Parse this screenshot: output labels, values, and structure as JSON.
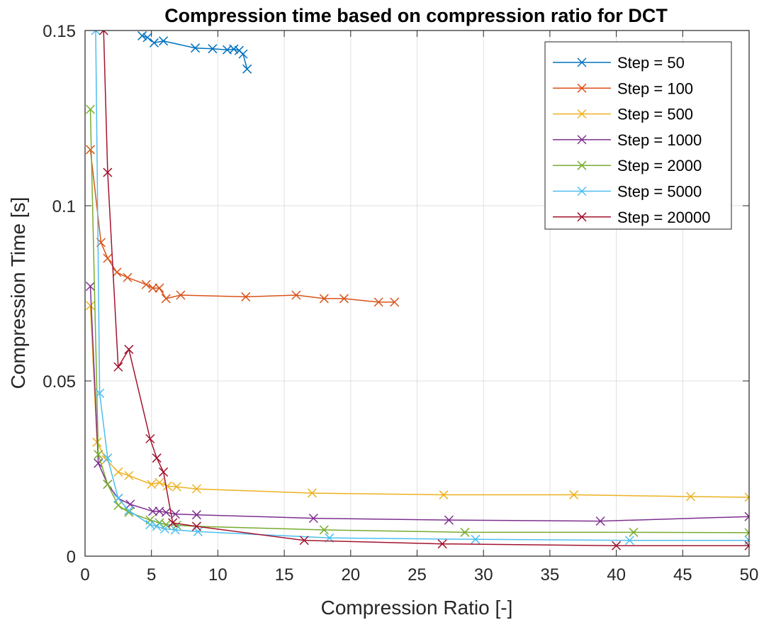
{
  "chart_data": {
    "type": "line",
    "title": "Compression time based on compression ratio for DCT",
    "xlabel": "Compression Ratio [-]",
    "ylabel": "Compression Time [s]",
    "xlim": [
      0,
      50
    ],
    "ylim": [
      0,
      0.15
    ],
    "x_ticks": [
      0,
      5,
      10,
      15,
      20,
      25,
      30,
      35,
      40,
      45,
      50
    ],
    "x_tick_labels": [
      "0",
      "5",
      "10",
      "15",
      "20",
      "25",
      "30",
      "35",
      "40",
      "45",
      "50"
    ],
    "y_ticks": [
      0,
      0.05,
      0.1,
      0.15
    ],
    "y_tick_labels": [
      "0",
      "0.05",
      "0.1",
      "0.15"
    ],
    "grid": true,
    "legend_position": "top-right",
    "marker": "x",
    "series": [
      {
        "name": "Step = 50",
        "color": "#0072BD",
        "x": [
          4.3,
          4.7,
          5.2,
          5.9,
          8.3,
          9.6,
          10.7,
          11.2,
          11.6,
          11.9,
          12.2
        ],
        "y": [
          0.1485,
          0.148,
          0.1465,
          0.147,
          0.145,
          0.1448,
          0.1445,
          0.1447,
          0.1443,
          0.1433,
          0.139
        ]
      },
      {
        "name": "Step = 100",
        "color": "#D95319",
        "x": [
          0.4,
          1.2,
          1.7,
          2.4,
          3.2,
          4.6,
          5.1,
          5.6,
          6.1,
          7.2,
          12.1,
          15.9,
          18.0,
          19.5,
          22.1,
          23.3
        ],
        "y": [
          0.116,
          0.0895,
          0.085,
          0.081,
          0.0795,
          0.0775,
          0.0765,
          0.0765,
          0.0735,
          0.0745,
          0.074,
          0.0745,
          0.0735,
          0.0735,
          0.0725,
          0.0725
        ]
      },
      {
        "name": "Step = 500",
        "color": "#EDB120",
        "x": [
          0.4,
          0.9,
          1.6,
          2.5,
          3.3,
          5.0,
          5.6,
          6.2,
          6.9,
          8.4,
          17.1,
          27.0,
          36.8,
          45.6,
          50.0
        ],
        "y": [
          0.0715,
          0.0325,
          0.0275,
          0.024,
          0.023,
          0.0205,
          0.021,
          0.02,
          0.0198,
          0.0192,
          0.018,
          0.0175,
          0.0175,
          0.017,
          0.0168
        ]
      },
      {
        "name": "Step = 1000",
        "color": "#7E2F8E",
        "x": [
          0.4,
          1.0,
          1.7,
          2.5,
          3.4,
          5.1,
          5.6,
          6.1,
          6.8,
          8.4,
          17.2,
          27.4,
          38.8,
          50.0
        ],
        "y": [
          0.077,
          0.0265,
          0.0205,
          0.0165,
          0.0148,
          0.0128,
          0.0128,
          0.0125,
          0.012,
          0.0118,
          0.0108,
          0.0103,
          0.01,
          0.0113
        ]
      },
      {
        "name": "Step = 2000",
        "color": "#77AC30",
        "x": [
          0.4,
          1.0,
          1.7,
          2.5,
          3.3,
          4.9,
          5.6,
          6.1,
          6.9,
          8.4,
          18.0,
          28.6,
          41.3,
          50.0
        ],
        "y": [
          0.1275,
          0.029,
          0.0205,
          0.0145,
          0.0125,
          0.0103,
          0.0095,
          0.009,
          0.0088,
          0.0085,
          0.0075,
          0.0068,
          0.0068,
          0.0067
        ]
      },
      {
        "name": "Step = 5000",
        "color": "#4DBEEE",
        "x": [
          0.8,
          1.1,
          1.7,
          2.5,
          3.3,
          4.9,
          5.4,
          6.0,
          6.8,
          8.5,
          18.4,
          29.4,
          41.0,
          50.0
        ],
        "y": [
          0.15,
          0.0465,
          0.028,
          0.0165,
          0.013,
          0.009,
          0.0085,
          0.0078,
          0.0075,
          0.007,
          0.0052,
          0.0048,
          0.0045,
          0.0045
        ]
      },
      {
        "name": "Step = 20000",
        "color": "#A2142F",
        "x": [
          1.4,
          1.7,
          2.5,
          3.3,
          4.9,
          5.4,
          5.9,
          6.6,
          8.4,
          16.5,
          26.9,
          40.0,
          50.0
        ],
        "y": [
          0.15,
          0.1095,
          0.054,
          0.059,
          0.0335,
          0.028,
          0.024,
          0.0095,
          0.0085,
          0.0045,
          0.0035,
          0.003,
          0.003
        ]
      }
    ]
  }
}
